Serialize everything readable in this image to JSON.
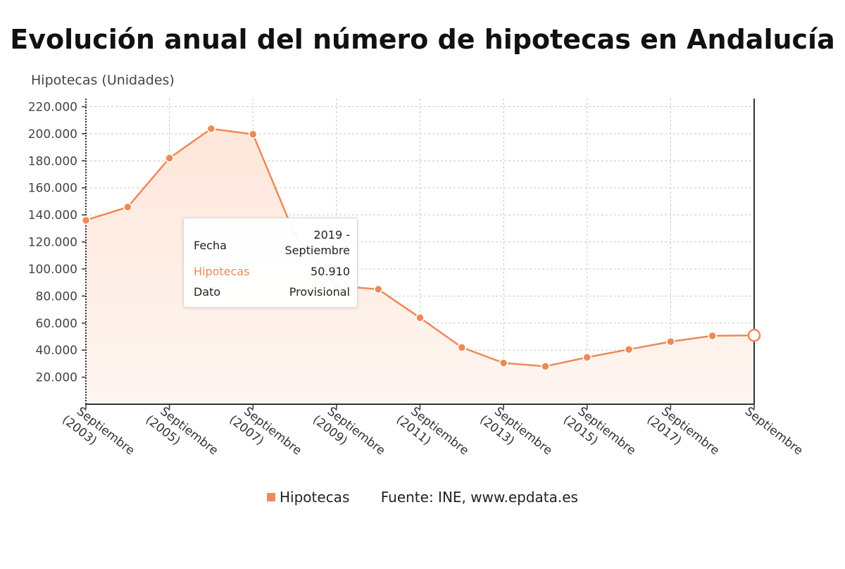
{
  "title": "Evolución anual del número de hipotecas en Andalucía",
  "colors": {
    "series": "#ee8a56",
    "fill_top": "#fde6db",
    "fill_bottom": "#fff6f1",
    "grid": "#c8c8c8",
    "axis": "#333333"
  },
  "legend": {
    "series_label": "Hipotecas",
    "source": "Fuente: INE, www.epdata.es"
  },
  "tooltip": {
    "fecha_label": "Fecha",
    "fecha_value_1": "2019 -",
    "fecha_value_2": "Septiembre",
    "hipotecas_label": "Hipotecas",
    "hipotecas_value": "50.910",
    "dato_label": "Dato",
    "dato_value": "Provisional"
  },
  "chart_data": {
    "type": "area",
    "ylabel": "Hipotecas (Unidades)",
    "ylim": [
      0,
      226000
    ],
    "yticks": [
      20000,
      40000,
      60000,
      80000,
      100000,
      120000,
      140000,
      160000,
      180000,
      200000,
      220000
    ],
    "ytick_labels": [
      "20.000",
      "40.000",
      "60.000",
      "80.000",
      "100.000",
      "120.000",
      "140.000",
      "160.000",
      "180.000",
      "200.000",
      "220.000"
    ],
    "grid": true,
    "x": [
      "2003",
      "2004",
      "2005",
      "2006",
      "2007",
      "2008",
      "2009",
      "2010",
      "2011",
      "2012",
      "2013",
      "2014",
      "2015",
      "2016",
      "2017",
      "2018",
      "2019"
    ],
    "xtick_labels": [
      [
        "Septiembre",
        "(2003)"
      ],
      [
        "Septiembre",
        "(2005)"
      ],
      [
        "Septiembre",
        "(2007)"
      ],
      [
        "Septiembre",
        "(2009)"
      ],
      [
        "Septiembre",
        "(2011)"
      ],
      [
        "Septiembre",
        "(2013)"
      ],
      [
        "Septiembre",
        "(2015)"
      ],
      [
        "Septiembre",
        "(2017)"
      ],
      [
        "Septiembre",
        ""
      ]
    ],
    "series": [
      {
        "name": "Hipotecas",
        "values": [
          136000,
          145800,
          182000,
          203700,
          199600,
          125500,
          87600,
          85000,
          63900,
          42000,
          30500,
          28000,
          34700,
          40500,
          46300,
          50600,
          50910
        ]
      }
    ]
  }
}
